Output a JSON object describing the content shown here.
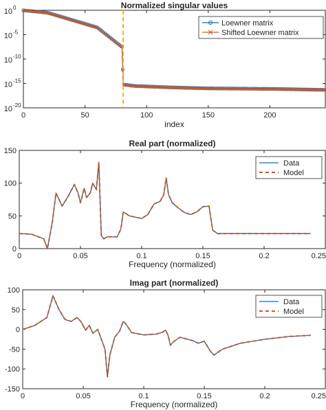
{
  "colors": {
    "blue": "#0072BD",
    "orange": "#D95319",
    "marker_line": "#EDB120",
    "axis": "#262626"
  },
  "chart_data": [
    {
      "type": "line",
      "title": "Normalized singular values",
      "xlabel": "index",
      "ylabel": "",
      "yscale": "log",
      "xlim": [
        0,
        245
      ],
      "ylim_exponent": [
        -20,
        0
      ],
      "xticks": [
        "0",
        "50",
        "100",
        "150",
        "200"
      ],
      "xtick_values": [
        0,
        50,
        100,
        150,
        200
      ],
      "yticks": [
        "10",
        "10",
        "10",
        "10",
        "10"
      ],
      "ytick_exponents": [
        "0",
        "-5",
        "-10",
        "-15",
        "-20"
      ],
      "ytick_values": [
        0,
        -5,
        -10,
        -15,
        -20
      ],
      "vline_x": 81,
      "legend": [
        "Loewner matrix",
        "Shifted Loewner matrix"
      ],
      "legend_position": "top-right",
      "series": [
        {
          "name": "Loewner matrix",
          "marker": "o",
          "x": [
            0,
            20,
            40,
            60,
            75,
            80,
            81,
            90,
            120,
            150,
            200,
            245
          ],
          "log10_values": [
            0,
            -0.5,
            -2,
            -3.5,
            -6.5,
            -7.5,
            -15.2,
            -15.5,
            -15.8,
            -16.0,
            -16.1,
            -16.3
          ]
        },
        {
          "name": "Shifted Loewner matrix",
          "marker": "x",
          "x": [
            0,
            20,
            40,
            60,
            75,
            80,
            81,
            90,
            120,
            150,
            200,
            245
          ],
          "log10_values": [
            0,
            -0.6,
            -2.1,
            -3.6,
            -6.6,
            -7.6,
            -15.3,
            -15.6,
            -15.9,
            -16.1,
            -16.2,
            -16.4
          ]
        }
      ]
    },
    {
      "type": "line",
      "title": "Real part (normalized)",
      "xlabel": "Frequency (normalized)",
      "ylabel": "",
      "xlim": [
        0,
        0.25
      ],
      "ylim": [
        0,
        150
      ],
      "xticks": [
        "0",
        "0.05",
        "0.1",
        "0.15",
        "0.2",
        "0.25"
      ],
      "xtick_values": [
        0,
        0.05,
        0.1,
        0.15,
        0.2,
        0.25
      ],
      "yticks": [
        "0",
        "50",
        "100",
        "150"
      ],
      "ytick_values": [
        0,
        50,
        100,
        150
      ],
      "legend": [
        "Data",
        "Model"
      ],
      "legend_position": "top-right",
      "x": [
        0,
        0.01,
        0.02,
        0.023,
        0.027,
        0.03,
        0.035,
        0.04,
        0.045,
        0.048,
        0.05,
        0.053,
        0.055,
        0.058,
        0.06,
        0.063,
        0.065,
        0.067,
        0.069,
        0.072,
        0.08,
        0.083,
        0.085,
        0.09,
        0.1,
        0.105,
        0.11,
        0.115,
        0.118,
        0.12,
        0.122,
        0.125,
        0.13,
        0.135,
        0.14,
        0.145,
        0.15,
        0.155,
        0.158,
        0.162,
        0.17,
        0.2,
        0.238
      ],
      "series": [
        {
          "name": "Data",
          "values": [
            23,
            22,
            15,
            0,
            40,
            85,
            65,
            80,
            98,
            85,
            70,
            92,
            78,
            85,
            100,
            90,
            132,
            20,
            15,
            18,
            18,
            30,
            56,
            50,
            46,
            52,
            68,
            72,
            82,
            108,
            82,
            70,
            62,
            55,
            52,
            56,
            64,
            65,
            28,
            23,
            23,
            23,
            23
          ]
        },
        {
          "name": "Model",
          "values": [
            23,
            22,
            15,
            0,
            40,
            85,
            65,
            80,
            98,
            85,
            70,
            92,
            78,
            85,
            100,
            90,
            132,
            20,
            15,
            18,
            18,
            30,
            56,
            50,
            46,
            52,
            68,
            72,
            82,
            108,
            82,
            70,
            62,
            55,
            52,
            56,
            64,
            65,
            28,
            23,
            23,
            23,
            23
          ]
        }
      ]
    },
    {
      "type": "line",
      "title": "Imag part (normalized)",
      "xlabel": "Frequency (normalized)",
      "ylabel": "",
      "xlim": [
        0,
        0.25
      ],
      "ylim": [
        -150,
        100
      ],
      "xticks": [
        "0",
        "0.05",
        "0.1",
        "0.15",
        "0.2",
        "0.25"
      ],
      "xtick_values": [
        0,
        0.05,
        0.1,
        0.15,
        0.2,
        0.25
      ],
      "yticks": [
        "100",
        "50",
        "0",
        "-50",
        "-100",
        "-150"
      ],
      "ytick_values": [
        100,
        50,
        0,
        -50,
        -100,
        -150
      ],
      "legend": [
        "Data",
        "Model"
      ],
      "legend_position": "top-right",
      "x": [
        0,
        0.01,
        0.02,
        0.025,
        0.03,
        0.035,
        0.04,
        0.045,
        0.048,
        0.052,
        0.055,
        0.058,
        0.062,
        0.065,
        0.068,
        0.07,
        0.072,
        0.076,
        0.08,
        0.083,
        0.085,
        0.09,
        0.1,
        0.11,
        0.115,
        0.118,
        0.12,
        0.122,
        0.125,
        0.13,
        0.14,
        0.145,
        0.15,
        0.155,
        0.158,
        0.165,
        0.18,
        0.2,
        0.22,
        0.238
      ],
      "series": [
        {
          "name": "Data",
          "values": [
            0,
            10,
            30,
            85,
            50,
            25,
            20,
            30,
            20,
            -2,
            10,
            -10,
            0,
            -25,
            -50,
            -120,
            -65,
            -20,
            -5,
            20,
            15,
            -8,
            -14,
            -12,
            -8,
            -2,
            -14,
            -40,
            -30,
            -20,
            -28,
            -35,
            -30,
            -55,
            -65,
            -50,
            -35,
            -25,
            -18,
            -15
          ]
        },
        {
          "name": "Model",
          "values": [
            0,
            10,
            30,
            85,
            50,
            25,
            20,
            30,
            20,
            -2,
            10,
            -10,
            0,
            -25,
            -50,
            -120,
            -65,
            -20,
            -5,
            20,
            15,
            -8,
            -14,
            -12,
            -8,
            -2,
            -14,
            -40,
            -30,
            -20,
            -28,
            -35,
            -30,
            -55,
            -65,
            -50,
            -35,
            -25,
            -18,
            -15
          ]
        }
      ]
    }
  ]
}
